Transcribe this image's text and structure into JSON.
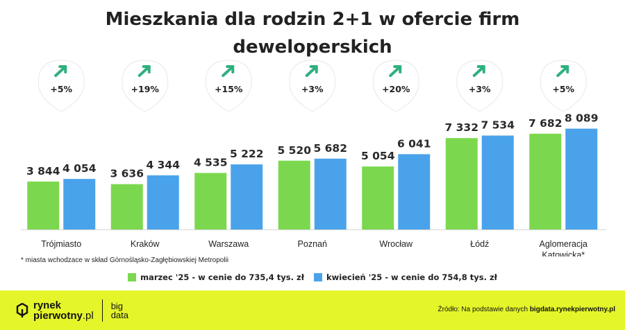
{
  "title_line1": "Mieszkania dla rodzin 2+1 w ofercie firm",
  "title_line2": "deweloperskich",
  "colors": {
    "march": "#7bd84e",
    "april": "#4aa3ea",
    "arrow": "#2fb07f",
    "footer": "#e4f52a"
  },
  "chart_data": {
    "type": "bar",
    "title": "Mieszkania dla rodzin 2+1 w ofercie firm deweloperskich",
    "categories": [
      [
        "Trójmiasto"
      ],
      [
        "Kraków"
      ],
      [
        "Warszawa"
      ],
      [
        "Poznań"
      ],
      [
        "Wrocław"
      ],
      [
        "Łódź"
      ],
      [
        "Aglomeracja",
        "Katowicka*"
      ]
    ],
    "series": [
      {
        "name": "marzec '25 - w cenie do 735,4 tys. zł",
        "values": [
          3844,
          3636,
          4535,
          5520,
          5054,
          7332,
          7682
        ],
        "labels": [
          "3 844",
          "3 636",
          "4 535",
          "5 520",
          "5 054",
          "7 332",
          "7 682"
        ]
      },
      {
        "name": "kwiecień '25 - w cenie do 754,8 tys. zł",
        "values": [
          4054,
          4344,
          5222,
          5682,
          6041,
          7534,
          8089
        ],
        "labels": [
          "4 054",
          "4 344",
          "5 222",
          "5 682",
          "6 041",
          "7 534",
          "8 089"
        ]
      }
    ],
    "changes": [
      "+5%",
      "+19%",
      "+15%",
      "+3%",
      "+20%",
      "+3%",
      "+5%"
    ],
    "ylim": [
      0,
      8200
    ],
    "grid": false,
    "legend_position": "bottom-center"
  },
  "footnote": "* miasta wchodzace w skład Górnośląsko-Zagłębiowskiej Metropolii",
  "legend": {
    "march": "marzec '25 - w cenie do 735,4 tys. zł",
    "april": "kwiecień '25 - w cenie do 754,8 tys. zł"
  },
  "footer": {
    "logo_line1": "rynek",
    "logo_line2": "pierwotny",
    "logo_tld": ".pl",
    "bigdata_line1": "big",
    "bigdata_line2": "data",
    "source_prefix": "Źródło: Na podstawie danych ",
    "source_site": "bigdata.rynekpierwotny.pl"
  },
  "icons": {
    "arrow": "arrow-up-right-icon"
  }
}
